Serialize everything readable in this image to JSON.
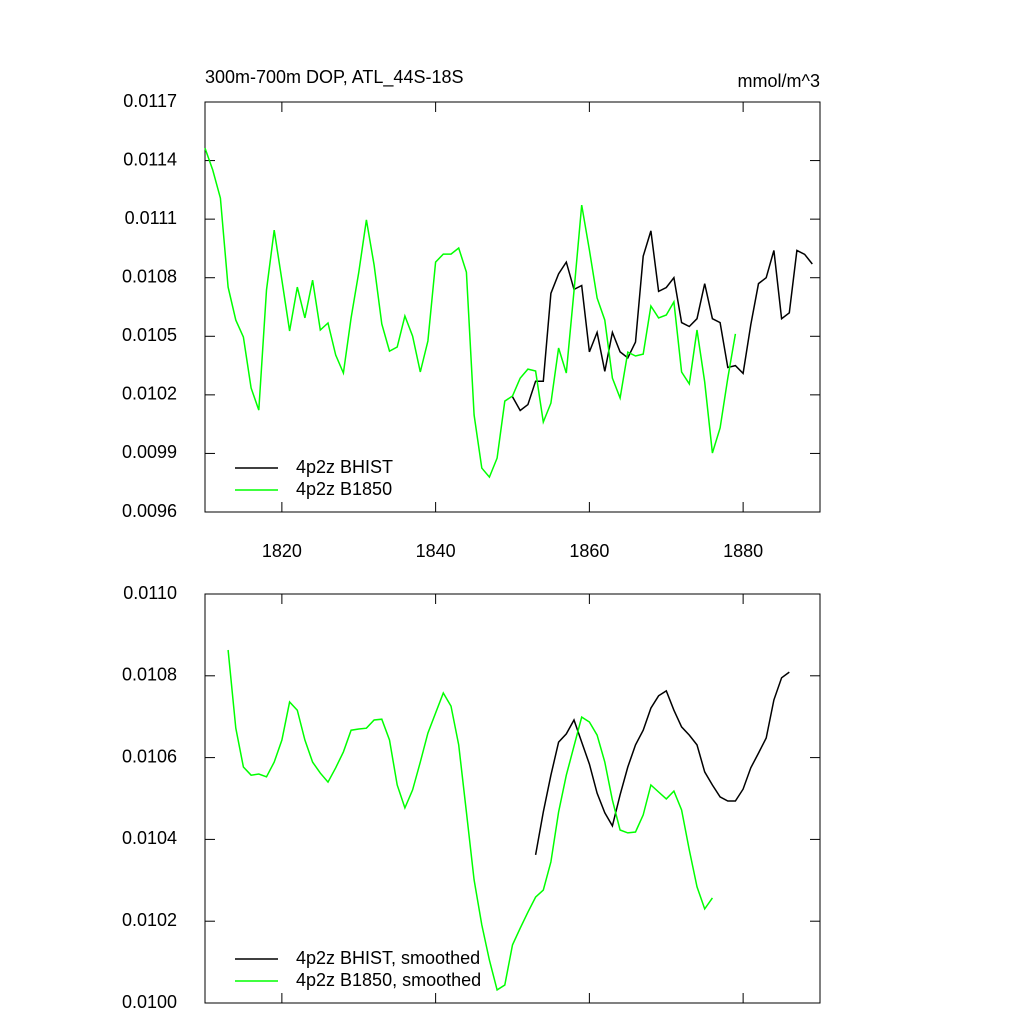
{
  "chart_data": [
    {
      "type": "line",
      "title": "300m-700m DOP, ATL_44S-18S",
      "units": "mmol/m^3",
      "xlim": [
        1810,
        1890
      ],
      "xticks": [
        1820,
        1840,
        1860,
        1880
      ],
      "ylim": [
        0.0096,
        0.0117
      ],
      "yticks": [
        0.0117,
        0.0114,
        0.0111,
        0.0108,
        0.0105,
        0.0102,
        0.0099,
        0.0096
      ],
      "legend": "lower left",
      "series": [
        {
          "name": "4p2z BHIST",
          "color": "#000000",
          "x": [
            1850,
            1851,
            1852,
            1853,
            1854,
            1855,
            1856,
            1857,
            1858,
            1859,
            1860,
            1861,
            1862,
            1863,
            1864,
            1865,
            1866,
            1867,
            1868,
            1869,
            1870,
            1871,
            1872,
            1873,
            1874,
            1875,
            1876,
            1877,
            1878,
            1879,
            1880,
            1881,
            1882,
            1883,
            1884,
            1885,
            1886,
            1887,
            1888,
            1889
          ],
          "values": [
            0.01019,
            0.01012,
            0.01015,
            0.01027,
            0.01027,
            0.01072,
            0.01082,
            0.01088,
            0.01074,
            0.01076,
            0.01042,
            0.01052,
            0.01032,
            0.01052,
            0.01042,
            0.01039,
            0.01047,
            0.01091,
            0.01104,
            0.01073,
            0.01075,
            0.0108,
            0.01057,
            0.01055,
            0.01059,
            0.01077,
            0.01059,
            0.01057,
            0.01034,
            0.01035,
            0.01031,
            0.01056,
            0.01077,
            0.0108,
            0.01094,
            0.01059,
            0.01062,
            0.01094,
            0.01092,
            0.01087
          ]
        },
        {
          "name": "4p2z B1850",
          "color": "#00ff00",
          "x": [
            1810,
            1811,
            1812,
            1813,
            1814,
            1815,
            1816,
            1817,
            1818,
            1819,
            1820,
            1821,
            1822,
            1823,
            1824,
            1825,
            1826,
            1827,
            1828,
            1829,
            1830,
            1831,
            1832,
            1833,
            1834,
            1835,
            1836,
            1837,
            1838,
            1839,
            1840,
            1841,
            1842,
            1843,
            1844,
            1845,
            1846,
            1847,
            1848,
            1849,
            1850,
            1851,
            1852,
            1853,
            1854,
            1855,
            1856,
            1857,
            1858,
            1859,
            1860,
            1861,
            1862,
            1863,
            1864,
            1865,
            1866,
            1867,
            1868,
            1869,
            1870,
            1871,
            1872,
            1873,
            1874,
            1875,
            1876,
            1877,
            1878,
            1879
          ],
          "values": [
            0.011464,
            0.011352,
            0.011208,
            0.010752,
            0.010583,
            0.010496,
            0.010235,
            0.010122,
            0.010737,
            0.011044,
            0.010788,
            0.010527,
            0.010752,
            0.010594,
            0.010788,
            0.010532,
            0.010568,
            0.010404,
            0.010312,
            0.010594,
            0.010829,
            0.011096,
            0.010865,
            0.010563,
            0.010424,
            0.010445,
            0.010604,
            0.010501,
            0.010317,
            0.010476,
            0.01088,
            0.010921,
            0.010921,
            0.010952,
            0.010829,
            0.010097,
            0.009825,
            0.009779,
            0.009876,
            0.010168,
            0.010194,
            0.010286,
            0.010332,
            0.010322,
            0.010061,
            0.010158,
            0.01044,
            0.010312,
            0.010732,
            0.011172,
            0.010942,
            0.010696,
            0.010583,
            0.010286,
            0.010184,
            0.010419,
            0.010399,
            0.010409,
            0.010655,
            0.010594,
            0.010609,
            0.010676,
            0.010317,
            0.010256,
            0.010532,
            0.010266,
            0.009902,
            0.01003,
            0.010286,
            0.010512
          ]
        }
      ]
    },
    {
      "type": "line",
      "xlim": [
        1810,
        1890
      ],
      "xticks": [
        1820,
        1840,
        1860,
        1880
      ],
      "ylim": [
        0.01,
        0.011
      ],
      "yticks": [
        {
          "value": 0.011,
          "label": "0.0110"
        },
        0.0108,
        0.0106,
        0.0104,
        0.0102,
        {
          "value": 0.01,
          "label": "0.0100"
        }
      ],
      "legend": "lower left",
      "series": [
        {
          "name": "4p2z BHIST, smoothed",
          "color": "#000000",
          "x": [
            1853,
            1854,
            1855,
            1856,
            1857,
            1858,
            1859,
            1860,
            1861,
            1862,
            1863,
            1864,
            1865,
            1866,
            1867,
            1868,
            1869,
            1870,
            1871,
            1872,
            1873,
            1874,
            1875,
            1876,
            1877,
            1878,
            1879,
            1880,
            1881,
            1882,
            1883,
            1884,
            1885,
            1886
          ],
          "values": [
            0.010362,
            0.010467,
            0.010557,
            0.010638,
            0.010658,
            0.010692,
            0.010638,
            0.010584,
            0.010513,
            0.010465,
            0.010433,
            0.010509,
            0.010577,
            0.010631,
            0.010667,
            0.010721,
            0.010751,
            0.010763,
            0.010716,
            0.010675,
            0.010655,
            0.010631,
            0.010565,
            0.010533,
            0.010504,
            0.010494,
            0.010494,
            0.010523,
            0.010575,
            0.010611,
            0.010648,
            0.010741,
            0.010795,
            0.010809
          ]
        },
        {
          "name": "4p2z B1850, smoothed",
          "color": "#00ff00",
          "x": [
            1813,
            1814,
            1815,
            1816,
            1817,
            1818,
            1819,
            1820,
            1821,
            1822,
            1823,
            1824,
            1825,
            1826,
            1827,
            1828,
            1829,
            1830,
            1831,
            1832,
            1833,
            1834,
            1835,
            1836,
            1837,
            1838,
            1839,
            1840,
            1841,
            1842,
            1843,
            1844,
            1845,
            1846,
            1847,
            1848,
            1849,
            1850,
            1851,
            1852,
            1853,
            1854,
            1855,
            1856,
            1857,
            1858,
            1859,
            1860,
            1861,
            1862,
            1863,
            1864,
            1865,
            1866,
            1867,
            1868,
            1869,
            1870,
            1871,
            1872,
            1873,
            1874,
            1875,
            1876
          ],
          "values": [
            0.010863,
            0.010672,
            0.010577,
            0.010557,
            0.01056,
            0.010553,
            0.010589,
            0.010643,
            0.010736,
            0.010716,
            0.010643,
            0.010589,
            0.010562,
            0.01054,
            0.010575,
            0.010614,
            0.010667,
            0.01067,
            0.010672,
            0.010692,
            0.010694,
            0.010643,
            0.010533,
            0.010477,
            0.010521,
            0.010589,
            0.01066,
            0.010709,
            0.010758,
            0.010726,
            0.010631,
            0.010467,
            0.010301,
            0.010191,
            0.010105,
            0.010032,
            0.010044,
            0.010142,
            0.010183,
            0.010222,
            0.010259,
            0.010276,
            0.010345,
            0.010467,
            0.010557,
            0.010628,
            0.010699,
            0.010687,
            0.010655,
            0.010589,
            0.010496,
            0.010423,
            0.010416,
            0.010418,
            0.01046,
            0.010533,
            0.010516,
            0.010499,
            0.010518,
            0.010472,
            0.010374,
            0.010284,
            0.01023,
            0.010257
          ]
        }
      ]
    }
  ]
}
